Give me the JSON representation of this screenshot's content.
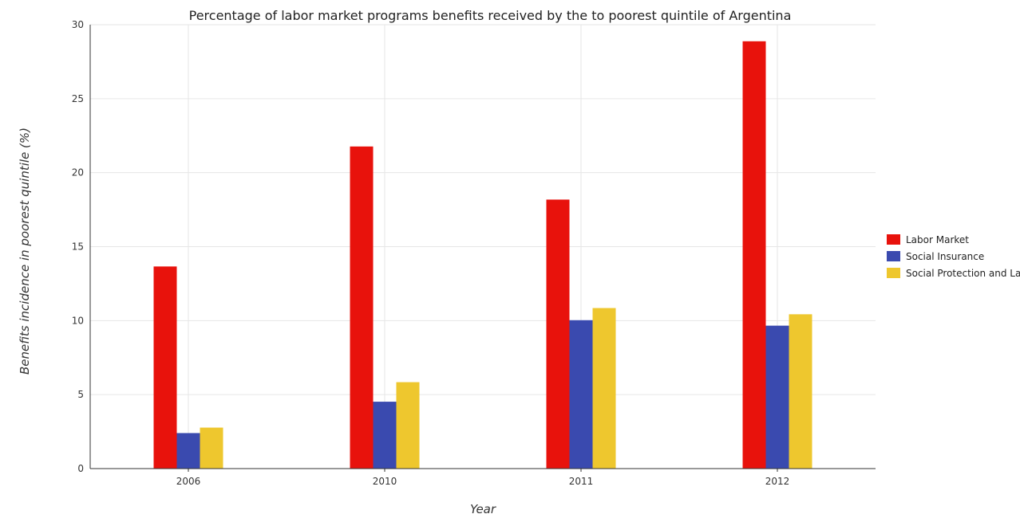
{
  "chart_data": {
    "type": "bar",
    "title": "Percentage of labor market programs benefits received by the to poorest quintile of Argentina",
    "xlabel": "Year",
    "ylabel": "Benefits incidence in poorest quintile (%)",
    "categories": [
      "2006",
      "2010",
      "2011",
      "2012"
    ],
    "ylim": [
      0,
      30
    ],
    "yticks": [
      0,
      5,
      10,
      15,
      20,
      25,
      30
    ],
    "grid": true,
    "legend_position": "right",
    "series": [
      {
        "name": "Labor Market",
        "color": "#e8120c",
        "values": [
          13.66,
          21.77,
          18.18,
          28.88
        ]
      },
      {
        "name": "Social Insurance",
        "color": "#3a4aaf",
        "values": [
          2.4,
          4.52,
          10.03,
          9.66
        ]
      },
      {
        "name": "Social Protection and Labor",
        "color": "#eec72e",
        "values": [
          2.77,
          5.84,
          10.85,
          10.43
        ]
      }
    ]
  }
}
